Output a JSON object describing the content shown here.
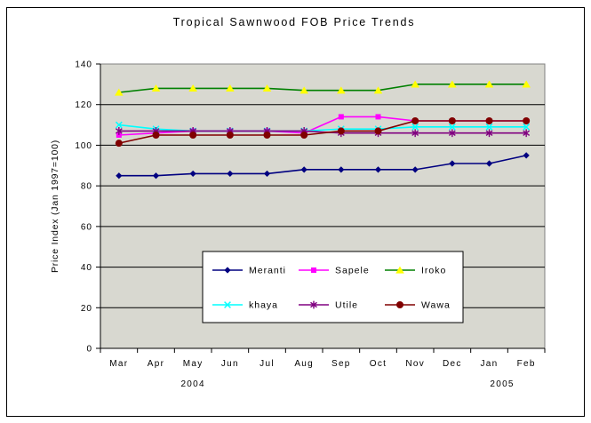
{
  "chart_data": {
    "type": "line",
    "title": "Tropical Sawnwood FOB Price Trends",
    "ylabel": "Price Index (Jan 1997=100)",
    "xlabel": "",
    "ylim": [
      0,
      140
    ],
    "yticks": [
      0,
      20,
      40,
      60,
      80,
      100,
      120,
      140
    ],
    "grid": true,
    "plot_bg_color": "#d8d8d0",
    "plot_border_color": "#808080",
    "gridline_color": "#000000",
    "legend_position": "inside-bottom-center",
    "categories": [
      "Mar",
      "Apr",
      "May",
      "Jun",
      "Jul",
      "Aug",
      "Sep",
      "Oct",
      "Nov",
      "Dec",
      "Jan",
      "Feb"
    ],
    "year_labels": [
      {
        "text": "2004",
        "index": 2
      },
      {
        "text": "2005",
        "index": 10.35
      }
    ],
    "series": [
      {
        "name": "Meranti",
        "color": "#000080",
        "marker": "diamond",
        "marker_color": "#000080",
        "values": [
          85,
          85,
          86,
          86,
          86,
          88,
          88,
          88,
          88,
          91,
          91,
          95
        ]
      },
      {
        "name": "Sapele",
        "color": "#ff00ff",
        "marker": "square",
        "marker_color": "#ff00ff",
        "values": [
          105,
          106,
          107,
          107,
          107,
          106,
          114,
          114,
          112,
          112,
          112,
          112
        ]
      },
      {
        "name": "Iroko",
        "color": "#008000",
        "marker": "triangle",
        "marker_color": "#ffff00",
        "values": [
          126,
          128,
          128,
          128,
          128,
          127,
          127,
          127,
          130,
          130,
          130,
          130
        ]
      },
      {
        "name": "khaya",
        "color": "#00ffff",
        "marker": "x",
        "marker_color": "#00ffff",
        "values": [
          110,
          108,
          107,
          107,
          107,
          107,
          108,
          108,
          109,
          109,
          109,
          109
        ]
      },
      {
        "name": "Utile",
        "color": "#800080",
        "marker": "asterisk",
        "marker_color": "#800080",
        "values": [
          107,
          107,
          107,
          107,
          107,
          107,
          106,
          106,
          106,
          106,
          106,
          106
        ]
      },
      {
        "name": "Wawa",
        "color": "#800000",
        "marker": "circle",
        "marker_color": "#800000",
        "values": [
          101,
          105,
          105,
          105,
          105,
          105,
          107,
          107,
          112,
          112,
          112,
          112
        ]
      }
    ]
  }
}
